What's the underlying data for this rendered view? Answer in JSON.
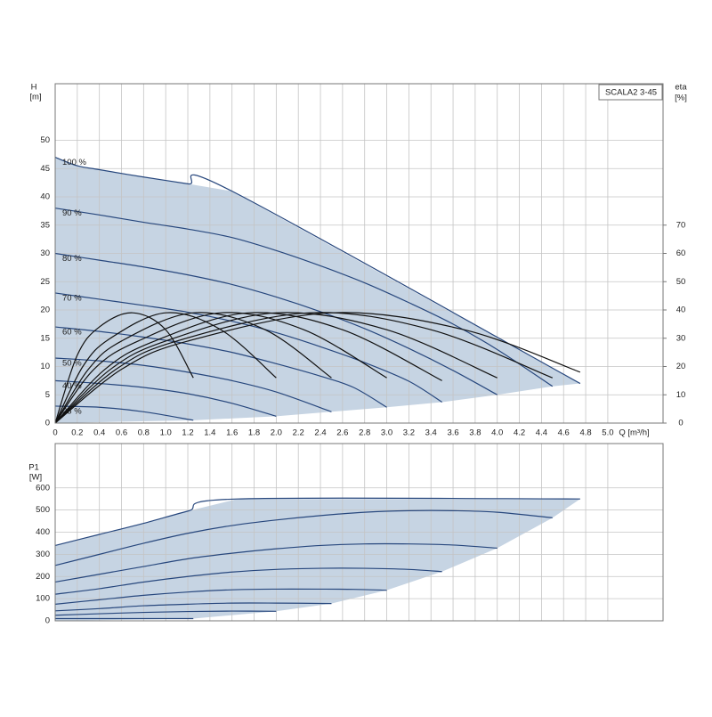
{
  "chart_data": [
    {
      "type": "line",
      "title": "SCALA2 3-45",
      "x_label": "Q [m³/h]",
      "y_label": "H",
      "y_unit": "[m]",
      "y2_label": "eta",
      "y2_unit": "[%]",
      "xlim": [
        0,
        5.5
      ],
      "xticks": [
        0,
        0.2,
        0.4,
        0.6,
        0.8,
        {
          "value": 1,
          "label": "1.0"
        },
        1.2,
        1.4,
        1.6,
        1.8,
        {
          "value": 2,
          "label": "2.0"
        },
        2.2,
        2.4,
        2.6,
        2.8,
        {
          "value": 3,
          "label": "3.0"
        },
        3.2,
        3.4,
        3.6,
        3.8,
        {
          "value": 4,
          "label": "4.0"
        },
        4.2,
        4.4,
        4.6,
        4.8,
        {
          "value": 5,
          "label": "5.0"
        }
      ],
      "ylim": [
        0,
        60
      ],
      "yticks": [
        0,
        5,
        10,
        15,
        20,
        25,
        30,
        35,
        40,
        45,
        50
      ],
      "y2lim": [
        0,
        120
      ],
      "y2ticks": [
        0,
        10,
        20,
        30,
        40,
        50,
        60,
        70
      ],
      "grid": true,
      "fill": "#c6d4e3",
      "series": [
        {
          "name": "100 %",
          "color": "#27477d",
          "x": [
            0,
            0.2,
            0.4,
            0.8,
            1.2,
            1.6,
            4.75
          ],
          "values": [
            47,
            45.5,
            44.8,
            43.5,
            42.3,
            41,
            7
          ]
        },
        {
          "name": "90 %",
          "color": "#27477d",
          "x": [
            0,
            0.4,
            0.8,
            1.2,
            1.6,
            2.0,
            2.4,
            2.8,
            3.2,
            3.6,
            4.0,
            4.5
          ],
          "values": [
            38,
            36.8,
            35.5,
            34.3,
            32.8,
            30.5,
            27.8,
            24.8,
            21.3,
            17.5,
            13,
            6.5
          ]
        },
        {
          "name": "80 %",
          "color": "#27477d",
          "x": [
            0,
            0.4,
            0.8,
            1.2,
            1.6,
            2.0,
            2.4,
            2.8,
            3.2,
            3.6,
            4.0
          ],
          "values": [
            30,
            28.8,
            27.6,
            26.2,
            24.5,
            22.3,
            19.7,
            16.7,
            13.2,
            9.3,
            5
          ]
        },
        {
          "name": "70 %",
          "color": "#27477d",
          "x": [
            0,
            0.4,
            0.8,
            1.2,
            1.6,
            2.0,
            2.4,
            2.8,
            3.2,
            3.5
          ],
          "values": [
            23,
            21.9,
            20.8,
            19.6,
            18,
            16,
            13.5,
            10.7,
            7.4,
            3.7
          ]
        },
        {
          "name": "60 %",
          "color": "#27477d",
          "x": [
            0,
            0.4,
            0.8,
            1.2,
            1.6,
            2.0,
            2.4,
            2.7,
            3.0
          ],
          "values": [
            17,
            16.2,
            15.2,
            14,
            12.5,
            10.5,
            8.3,
            6.3,
            2.8
          ]
        },
        {
          "name": "50 %",
          "color": "#27477d",
          "x": [
            0,
            0.4,
            0.8,
            1.2,
            1.6,
            2.0,
            2.5
          ],
          "values": [
            11.5,
            11,
            10.2,
            9,
            7.5,
            5.5,
            2
          ]
        },
        {
          "name": "40 %",
          "color": "#27477d",
          "x": [
            0,
            0.4,
            0.8,
            1.2,
            1.6,
            2.0
          ],
          "values": [
            7.5,
            7,
            6.3,
            5.2,
            3.5,
            1.2
          ]
        },
        {
          "name": "25 %",
          "color": "#27477d",
          "x": [
            0,
            0.4,
            0.8,
            1.25
          ],
          "values": [
            3,
            2.8,
            2,
            0.5
          ]
        },
        {
          "axis": "y2",
          "color": "#111111",
          "x": [
            0,
            0.2,
            0.4,
            0.7,
            1.0,
            1.25
          ],
          "values": [
            0,
            24,
            34,
            39,
            33,
            16
          ]
        },
        {
          "axis": "y2",
          "color": "#111111",
          "x": [
            0,
            0.25,
            0.5,
            1.0,
            1.5,
            2.0
          ],
          "values": [
            0,
            20,
            30,
            39,
            33,
            16
          ]
        },
        {
          "axis": "y2",
          "color": "#111111",
          "x": [
            0,
            0.3,
            0.6,
            1.25,
            1.9,
            2.5
          ],
          "values": [
            0,
            19,
            29,
            39,
            33,
            16
          ]
        },
        {
          "axis": "y2",
          "color": "#111111",
          "x": [
            0,
            0.35,
            0.75,
            1.5,
            2.25,
            3.0
          ],
          "values": [
            0,
            19,
            29,
            39,
            33,
            16
          ]
        },
        {
          "axis": "y2",
          "color": "#111111",
          "x": [
            0,
            0.45,
            0.9,
            1.75,
            2.6,
            3.5
          ],
          "values": [
            0,
            19,
            29,
            39,
            33,
            15
          ]
        },
        {
          "axis": "y2",
          "color": "#111111",
          "x": [
            0,
            0.5,
            1.0,
            2.0,
            3.0,
            4.0
          ],
          "values": [
            0,
            19,
            29,
            39,
            33,
            16
          ]
        },
        {
          "axis": "y2",
          "color": "#111111",
          "x": [
            0,
            0.55,
            1.1,
            2.3,
            3.4,
            4.5
          ],
          "values": [
            0,
            19,
            29,
            39,
            33,
            16
          ]
        },
        {
          "axis": "y2",
          "color": "#111111",
          "x": [
            0,
            0.6,
            1.2,
            2.5,
            3.7,
            4.75
          ],
          "values": [
            0,
            19,
            29,
            39,
            33,
            18
          ]
        }
      ]
    },
    {
      "type": "line",
      "y_label": "P1",
      "y_unit": "[W]",
      "xlim": [
        0,
        5.5
      ],
      "ylim": [
        0,
        800
      ],
      "yticks": [
        0,
        100,
        200,
        300,
        400,
        500,
        600
      ],
      "grid": true,
      "fill": "#c6d4e3",
      "series": [
        {
          "color": "#27477d",
          "x": [
            0,
            0.4,
            0.8,
            1.2,
            1.65,
            4.75
          ],
          "values": [
            340,
            390,
            440,
            495,
            550,
            550
          ]
        },
        {
          "color": "#27477d",
          "x": [
            0,
            0.4,
            0.8,
            1.2,
            1.6,
            2.0,
            2.4,
            2.8,
            3.2,
            3.6,
            4.0,
            4.5
          ],
          "values": [
            250,
            300,
            350,
            395,
            430,
            455,
            475,
            490,
            497,
            497,
            490,
            465
          ]
        },
        {
          "color": "#27477d",
          "x": [
            0,
            0.4,
            0.8,
            1.2,
            1.6,
            2.0,
            2.4,
            2.8,
            3.2,
            3.6,
            4.0
          ],
          "values": [
            175,
            210,
            245,
            280,
            305,
            325,
            340,
            347,
            347,
            342,
            328
          ]
        },
        {
          "color": "#27477d",
          "x": [
            0,
            0.4,
            0.8,
            1.2,
            1.6,
            2.0,
            2.4,
            2.8,
            3.2,
            3.5
          ],
          "values": [
            120,
            145,
            175,
            200,
            220,
            232,
            237,
            237,
            232,
            222
          ]
        },
        {
          "color": "#27477d",
          "x": [
            0,
            0.4,
            0.8,
            1.2,
            1.6,
            2.0,
            2.4,
            2.7,
            3.0
          ],
          "values": [
            75,
            95,
            115,
            130,
            140,
            143,
            143,
            142,
            138
          ]
        },
        {
          "color": "#27477d",
          "x": [
            0,
            0.4,
            0.8,
            1.2,
            1.6,
            2.0,
            2.5
          ],
          "values": [
            45,
            55,
            68,
            75,
            80,
            80,
            78
          ]
        },
        {
          "color": "#27477d",
          "x": [
            0,
            0.4,
            0.8,
            1.2,
            1.6,
            2.0
          ],
          "values": [
            25,
            32,
            38,
            42,
            44,
            43
          ]
        },
        {
          "color": "#27477d",
          "x": [
            0,
            0.4,
            0.8,
            1.25
          ],
          "values": [
            10,
            10,
            10,
            10
          ]
        }
      ]
    }
  ]
}
